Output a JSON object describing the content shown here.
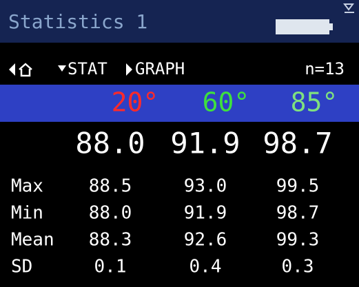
{
  "header": {
    "title": "Statistics 1"
  },
  "nav": {
    "stat": "STAT",
    "graph": "GRAPH",
    "count": "n=13"
  },
  "angles": [
    "20°",
    "60°",
    "85°"
  ],
  "current": [
    "88.0",
    "91.9",
    "98.7"
  ],
  "table": {
    "rows": [
      [
        "Max",
        "88.5",
        "93.0",
        "99.5"
      ],
      [
        "Min",
        "88.0",
        "91.9",
        "98.7"
      ],
      [
        "Mean",
        "88.3",
        "92.6",
        "99.3"
      ],
      [
        "SD",
        "0.1",
        "0.4",
        "0.3"
      ]
    ]
  }
}
